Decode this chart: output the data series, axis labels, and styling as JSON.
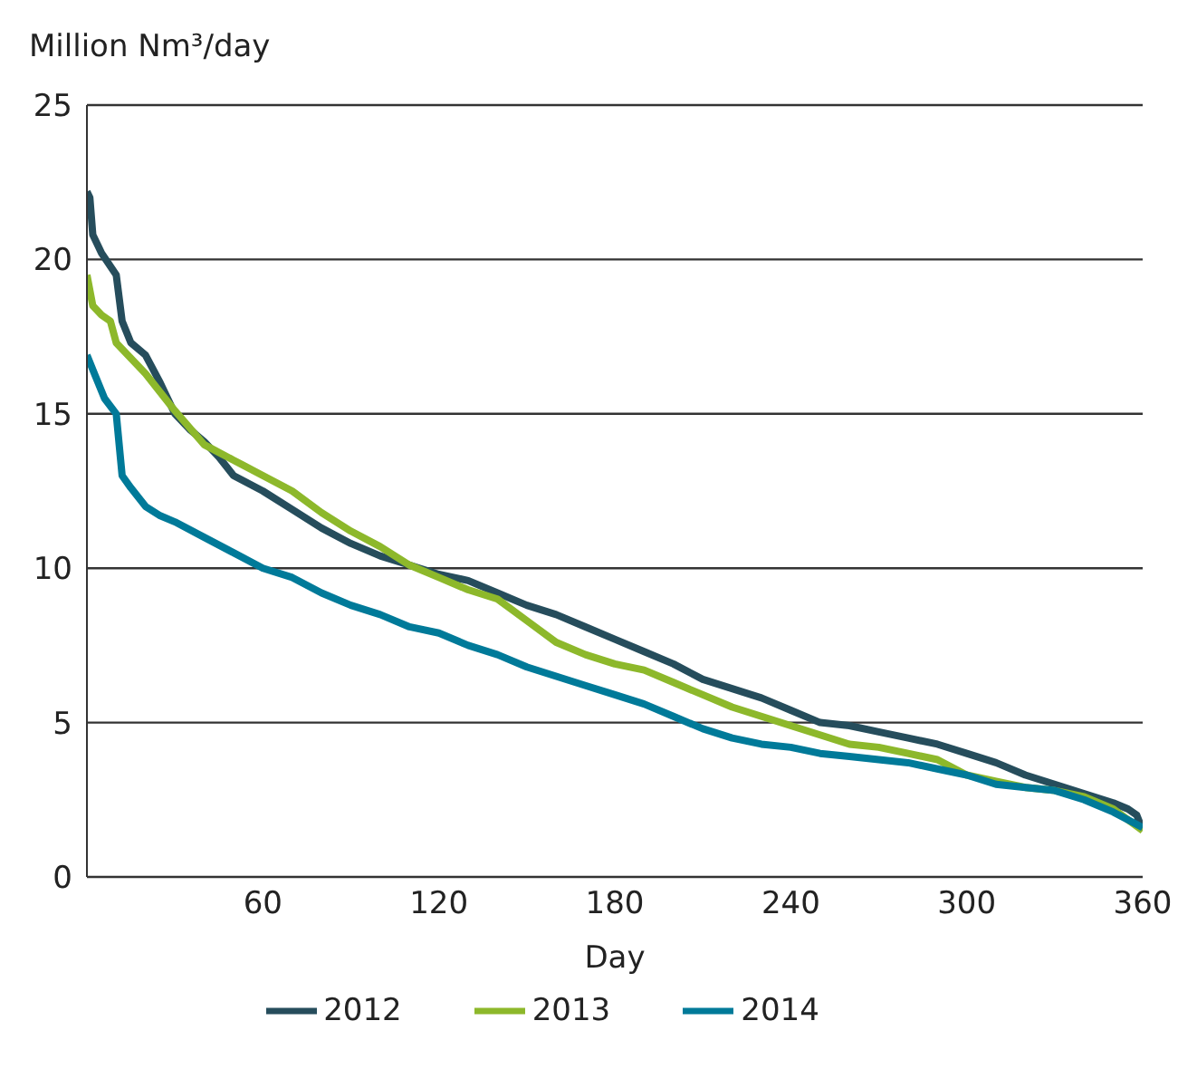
{
  "chart_data": {
    "type": "line",
    "ylabel": "Million Nm³/day",
    "xlabel": "Day",
    "xlim": [
      0,
      360
    ],
    "xticks": [
      60,
      120,
      180,
      240,
      300,
      360
    ],
    "ylim": [
      0,
      25
    ],
    "yticks": [
      0,
      5,
      10,
      15,
      20,
      25
    ],
    "grid": "y",
    "legend": "bottom",
    "marker": "none",
    "line_style": "solid",
    "series": [
      {
        "name": "2012",
        "color": "#264d5c",
        "x": [
          0,
          1,
          2,
          5,
          10,
          12,
          15,
          20,
          25,
          30,
          35,
          40,
          45,
          50,
          60,
          70,
          80,
          90,
          100,
          110,
          120,
          130,
          140,
          150,
          160,
          170,
          180,
          190,
          200,
          210,
          220,
          230,
          240,
          250,
          260,
          270,
          280,
          290,
          300,
          310,
          320,
          330,
          340,
          350,
          355,
          358,
          360
        ],
        "values": [
          22.2,
          22.0,
          20.8,
          20.2,
          19.5,
          18,
          17.3,
          16.9,
          16.0,
          15.0,
          14.5,
          14.1,
          13.6,
          13.0,
          12.5,
          11.9,
          11.3,
          10.8,
          10.4,
          10.1,
          9.8,
          9.6,
          9.2,
          8.8,
          8.5,
          8.1,
          7.7,
          7.3,
          6.9,
          6.4,
          6.1,
          5.8,
          5.4,
          5.0,
          4.9,
          4.7,
          4.5,
          4.3,
          4.0,
          3.7,
          3.3,
          3.0,
          2.7,
          2.4,
          2.2,
          2.0,
          1.5
        ]
      },
      {
        "name": "2013",
        "color": "#8db82b",
        "x": [
          0,
          2,
          5,
          8,
          10,
          15,
          20,
          30,
          40,
          50,
          60,
          70,
          80,
          90,
          100,
          110,
          120,
          130,
          140,
          150,
          160,
          170,
          180,
          190,
          200,
          210,
          220,
          230,
          240,
          250,
          260,
          270,
          280,
          290,
          300,
          310,
          320,
          330,
          340,
          350,
          360
        ],
        "values": [
          19.5,
          18.5,
          18.2,
          18.0,
          17.3,
          16.8,
          16.3,
          15.1,
          14.0,
          13.5,
          13.0,
          12.5,
          11.8,
          11.2,
          10.7,
          10.1,
          9.7,
          9.3,
          9.0,
          8.3,
          7.6,
          7.2,
          6.9,
          6.7,
          6.3,
          5.9,
          5.5,
          5.2,
          4.9,
          4.6,
          4.3,
          4.2,
          4.0,
          3.8,
          3.3,
          3.1,
          2.9,
          2.8,
          2.6,
          2.2,
          1.5
        ]
      },
      {
        "name": "2014",
        "color": "#007a99",
        "x": [
          0,
          3,
          6,
          10,
          12,
          15,
          20,
          25,
          30,
          40,
          50,
          60,
          70,
          80,
          90,
          100,
          110,
          120,
          130,
          140,
          150,
          160,
          170,
          180,
          190,
          200,
          210,
          220,
          230,
          240,
          250,
          260,
          270,
          280,
          290,
          300,
          310,
          320,
          330,
          340,
          350,
          360
        ],
        "values": [
          16.9,
          16.2,
          15.5,
          15.0,
          13.0,
          12.6,
          12.0,
          11.7,
          11.5,
          11.0,
          10.5,
          10.0,
          9.7,
          9.2,
          8.8,
          8.5,
          8.1,
          7.9,
          7.5,
          7.2,
          6.8,
          6.5,
          6.2,
          5.9,
          5.6,
          5.2,
          4.8,
          4.5,
          4.3,
          4.2,
          4.0,
          3.9,
          3.8,
          3.7,
          3.5,
          3.3,
          3.0,
          2.9,
          2.8,
          2.5,
          2.1,
          1.6
        ]
      }
    ]
  }
}
